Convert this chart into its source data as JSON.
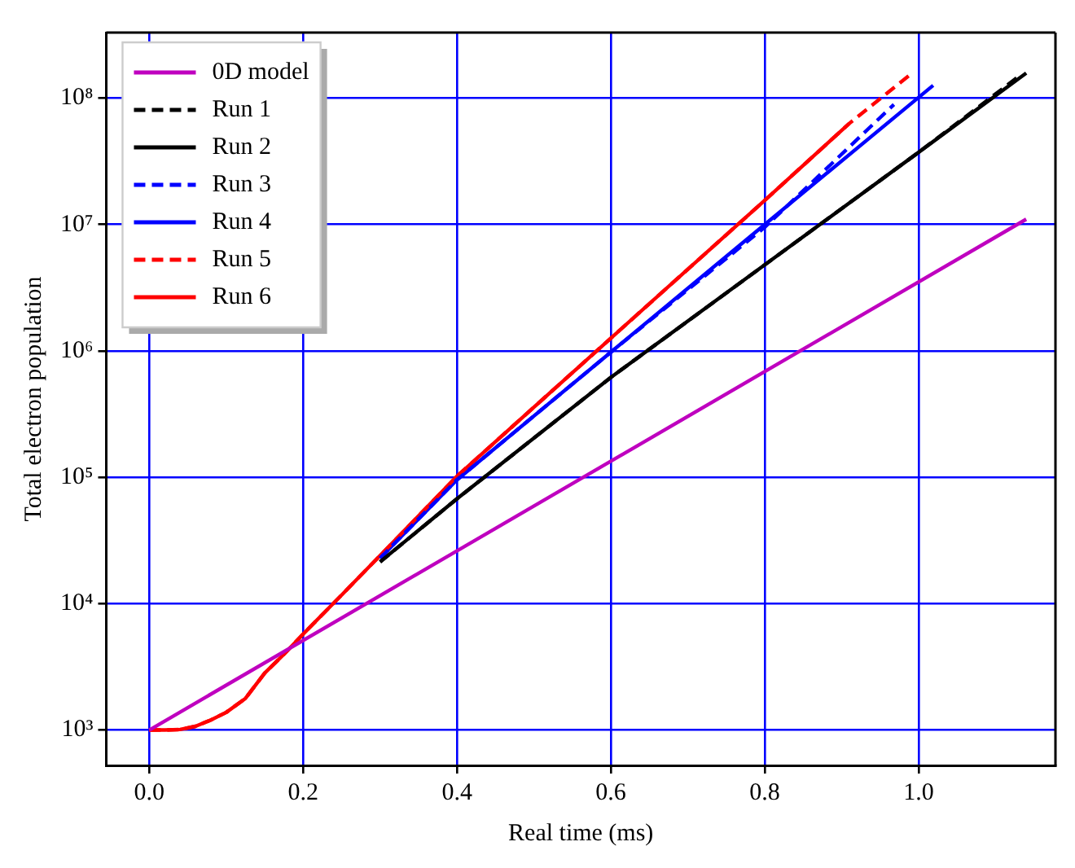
{
  "chart_data": {
    "type": "line",
    "xlabel": "Real time (ms)",
    "ylabel": "Total electron population",
    "log": "y",
    "grid": true,
    "legend": "top left",
    "marker": "none",
    "xlim": [
      -0.056,
      1.178
    ],
    "ylim": [
      525,
      330000000
    ],
    "xticks": [
      {
        "value": 0,
        "label": "0.0"
      },
      {
        "value": 0.2,
        "label": "0.2"
      },
      {
        "value": 0.4,
        "label": "0.4"
      },
      {
        "value": 0.6,
        "label": "0.6"
      },
      {
        "value": 0.8,
        "label": "0.8"
      },
      {
        "value": 1,
        "label": "1.0"
      }
    ],
    "yticks": [
      {
        "value": 1000,
        "label": "10³"
      },
      {
        "value": 10000,
        "label": "10⁴"
      },
      {
        "value": 100000,
        "label": "10⁵"
      },
      {
        "value": 1000000,
        "label": "10⁶"
      },
      {
        "value": 10000000,
        "label": "10⁷"
      },
      {
        "value": 100000000,
        "label": "10⁸"
      }
    ],
    "series": [
      {
        "name": "0D model",
        "color": "#bf00bf",
        "line_style": "solid",
        "x": [
          0,
          1.14
        ],
        "values": [
          1000,
          11000000
        ]
      },
      {
        "name": "Run 1",
        "color": "#000000",
        "line_style": "dashed",
        "x": [
          0.3,
          0.4,
          0.6,
          0.8,
          1.0,
          1.13
        ],
        "values": [
          21400,
          67600,
          617000,
          4790000,
          37200000,
          148000000
        ]
      },
      {
        "name": "Run 2",
        "color": "#000000",
        "line_style": "solid",
        "x": [
          0.3,
          0.4,
          0.6,
          0.8,
          1.0,
          1.14
        ],
        "values": [
          21400,
          67600,
          617000,
          4790000,
          37200000,
          158000000
        ]
      },
      {
        "name": "Run 3",
        "color": "#0000ff",
        "line_style": "dashed",
        "x": [
          0.3,
          0.4,
          0.6,
          0.8,
          0.968
        ],
        "values": [
          22900,
          95500,
          977000,
          9500000,
          89000000
        ]
      },
      {
        "name": "Run 4",
        "color": "#0000ff",
        "line_style": "solid",
        "x": [
          0.3,
          0.4,
          0.6,
          0.8,
          1.019
        ],
        "values": [
          22900,
          95500,
          977000,
          10000000,
          126000000
        ]
      },
      {
        "name": "Run 5",
        "color": "#ff0000",
        "line_style": "dashed",
        "x": [
          0,
          0.02,
          0.04,
          0.06,
          0.08,
          0.1,
          0.125,
          0.15,
          0.175,
          0.2,
          0.25,
          0.3,
          0.4,
          0.6,
          0.8,
          0.91,
          0.99
        ],
        "values": [
          1000,
          1000,
          1010,
          1070,
          1200,
          1380,
          1780,
          2820,
          3980,
          5750,
          11700,
          24000,
          102000,
          1260000,
          15500000,
          63000000,
          155000000
        ]
      },
      {
        "name": "Run 6",
        "color": "#ff0000",
        "line_style": "solid",
        "x": [
          0,
          0.02,
          0.04,
          0.06,
          0.08,
          0.1,
          0.125,
          0.15,
          0.175,
          0.2,
          0.25,
          0.3,
          0.4,
          0.6,
          0.8,
          0.91
        ],
        "values": [
          1000,
          1000,
          1010,
          1070,
          1200,
          1380,
          1780,
          2820,
          3980,
          5750,
          11700,
          24000,
          102000,
          1260000,
          15500000,
          63000000
        ]
      }
    ]
  }
}
